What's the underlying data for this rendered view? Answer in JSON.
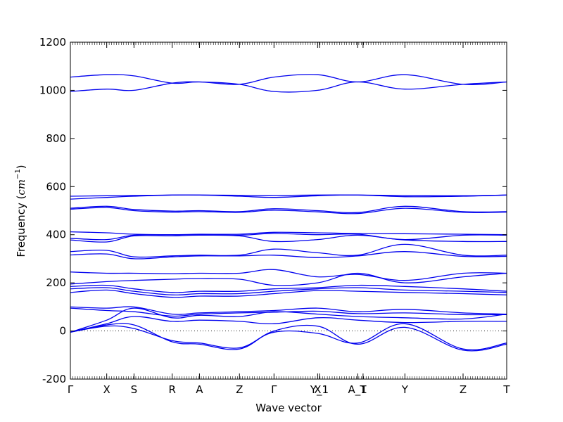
{
  "chart_data": {
    "type": "line",
    "xlabel": "Wave vector",
    "ylabel_text": "Frequency (",
    "ylabel_unit": "cm",
    "ylabel_exp": "−1",
    "ylabel_close": ")",
    "ylim": [
      -200,
      1200
    ],
    "yticks": [
      -200,
      0,
      200,
      400,
      600,
      800,
      1000,
      1200
    ],
    "xlim": [
      0,
      12
    ],
    "xticks": [
      {
        "x": 0,
        "label": "Γ"
      },
      {
        "x": 1,
        "label": "X"
      },
      {
        "x": 1.75,
        "label": "S"
      },
      {
        "x": 2.8,
        "label": "R"
      },
      {
        "x": 3.55,
        "label": "A"
      },
      {
        "x": 4.65,
        "label": "Z"
      },
      {
        "x": 5.6,
        "label": "Γ"
      },
      {
        "x": 6.8,
        "label": "X"
      },
      {
        "x": 6.85,
        "label": "Y_1"
      },
      {
        "x": 7.9,
        "label": "A_1"
      },
      {
        "x": 8.05,
        "label": "T"
      },
      {
        "x": 9.2,
        "label": "Y"
      },
      {
        "x": 10.8,
        "label": "Z"
      },
      {
        "x": 12,
        "label": "T"
      }
    ],
    "zero_line": true,
    "line_color": "#0000ee",
    "knots_x": [
      0,
      1,
      1.75,
      2.8,
      3.55,
      4.65,
      5.6,
      6.8,
      7.9,
      9.2,
      10.8,
      12
    ],
    "bands": [
      {
        "y": [
          1055,
          1065,
          1060,
          1030,
          1035,
          1025,
          1055,
          1065,
          1035,
          1065,
          1025,
          1035
        ]
      },
      {
        "y": [
          995,
          1005,
          1000,
          1030,
          1035,
          1025,
          995,
          1000,
          1035,
          1005,
          1025,
          1035
        ]
      },
      {
        "y": [
          560,
          562,
          563,
          565,
          565,
          564,
          563,
          565,
          565,
          563,
          562,
          565
        ]
      },
      {
        "y": [
          548,
          555,
          560,
          565,
          565,
          560,
          555,
          562,
          565,
          558,
          560,
          565
        ]
      },
      {
        "y": [
          510,
          518,
          505,
          498,
          500,
          496,
          508,
          500,
          492,
          518,
          496,
          496
        ]
      },
      {
        "y": [
          506,
          513,
          500,
          494,
          496,
          493,
          502,
          495,
          488,
          510,
          493,
          494
        ]
      },
      {
        "y": [
          412,
          408,
          402,
          400,
          402,
          402,
          410,
          408,
          405,
          404,
          402,
          400
        ]
      },
      {
        "y": [
          385,
          380,
          398,
          400,
          400,
          398,
          405,
          400,
          402,
          380,
          398,
          398
        ]
      },
      {
        "y": [
          378,
          370,
          395,
          395,
          398,
          395,
          372,
          380,
          398,
          378,
          372,
          372
        ]
      },
      {
        "y": [
          330,
          335,
          308,
          312,
          315,
          315,
          340,
          325,
          315,
          360,
          315,
          315
        ]
      },
      {
        "y": [
          316,
          320,
          300,
          308,
          312,
          312,
          315,
          305,
          312,
          330,
          310,
          310
        ]
      },
      {
        "y": [
          245,
          240,
          240,
          238,
          240,
          240,
          255,
          225,
          235,
          210,
          240,
          240
        ]
      },
      {
        "y": [
          195,
          205,
          210,
          215,
          218,
          215,
          190,
          200,
          240,
          200,
          225,
          240
        ]
      },
      {
        "y": [
          185,
          190,
          175,
          160,
          165,
          165,
          175,
          180,
          190,
          185,
          175,
          165
        ]
      },
      {
        "y": [
          175,
          180,
          165,
          150,
          155,
          155,
          165,
          175,
          180,
          170,
          165,
          160
        ]
      },
      {
        "y": [
          160,
          170,
          155,
          140,
          145,
          145,
          155,
          168,
          165,
          160,
          155,
          150
        ]
      },
      {
        "y": [
          100,
          95,
          100,
          70,
          75,
          80,
          85,
          95,
          80,
          90,
          75,
          70
        ]
      },
      {
        "y": [
          95,
          85,
          80,
          62,
          70,
          75,
          78,
          82,
          72,
          75,
          68,
          68
        ]
      },
      {
        "y": [
          -5,
          45,
          95,
          55,
          65,
          60,
          80,
          70,
          60,
          55,
          50,
          70
        ]
      },
      {
        "y": [
          -5,
          30,
          60,
          40,
          45,
          40,
          30,
          55,
          45,
          35,
          40,
          40
        ]
      },
      {
        "y": [
          -5,
          25,
          25,
          -45,
          -55,
          -75,
          0,
          20,
          -55,
          15,
          -80,
          -55
        ]
      },
      {
        "y": [
          -5,
          20,
          10,
          -40,
          -50,
          -70,
          -5,
          -10,
          -50,
          30,
          -75,
          -50
        ]
      }
    ]
  }
}
